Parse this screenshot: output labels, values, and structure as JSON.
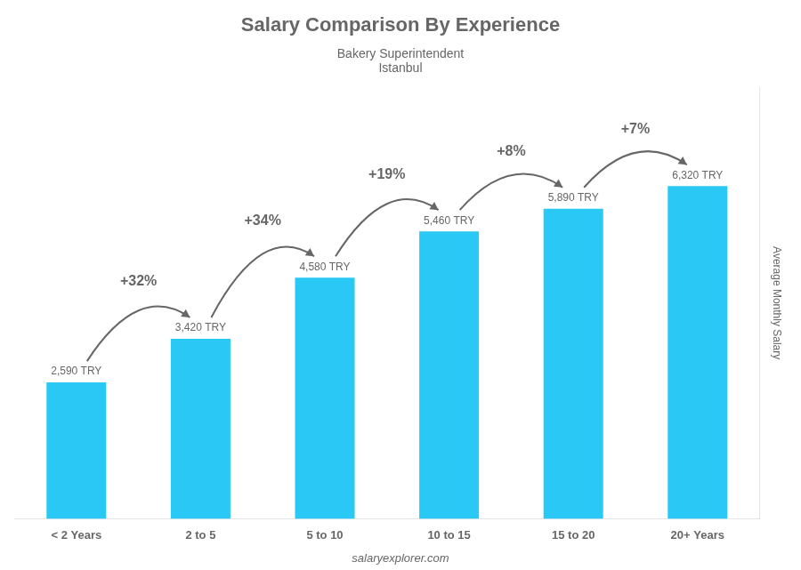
{
  "chart_data": {
    "type": "bar",
    "title": "Salary Comparison By Experience",
    "subtitle": [
      "Bakery Superintendent",
      "Istanbul"
    ],
    "y_label": "Average Monthly Salary",
    "categories": [
      "< 2 Years",
      "2 to 5",
      "5 to 10",
      "10 to 15",
      "15 to 20",
      "20+ Years"
    ],
    "values": [
      2590,
      3420,
      4580,
      5460,
      5890,
      6320
    ],
    "value_labels": [
      "2,590 TRY",
      "3,420 TRY",
      "4,580 TRY",
      "5,460 TRY",
      "5,890 TRY",
      "6,320 TRY"
    ],
    "data_labels": true,
    "color": "#29C8F5",
    "ylim": [
      0,
      8200
    ],
    "tick_labels": "x",
    "grid": false,
    "annotations": [
      {
        "text": "+32%",
        "from": "< 2 Years",
        "to": "2 to 5"
      },
      {
        "text": "+34%",
        "from": "2 to 5",
        "to": "5 to 10"
      },
      {
        "text": "+19%",
        "from": "5 to 10",
        "to": "10 to 15"
      },
      {
        "text": "+8%",
        "from": "10 to 15",
        "to": "15 to 20"
      },
      {
        "text": "+7%",
        "from": "15 to 20",
        "to": "20+ Years"
      },
      {
        "text": "salaryexplorer.com"
      }
    ]
  }
}
